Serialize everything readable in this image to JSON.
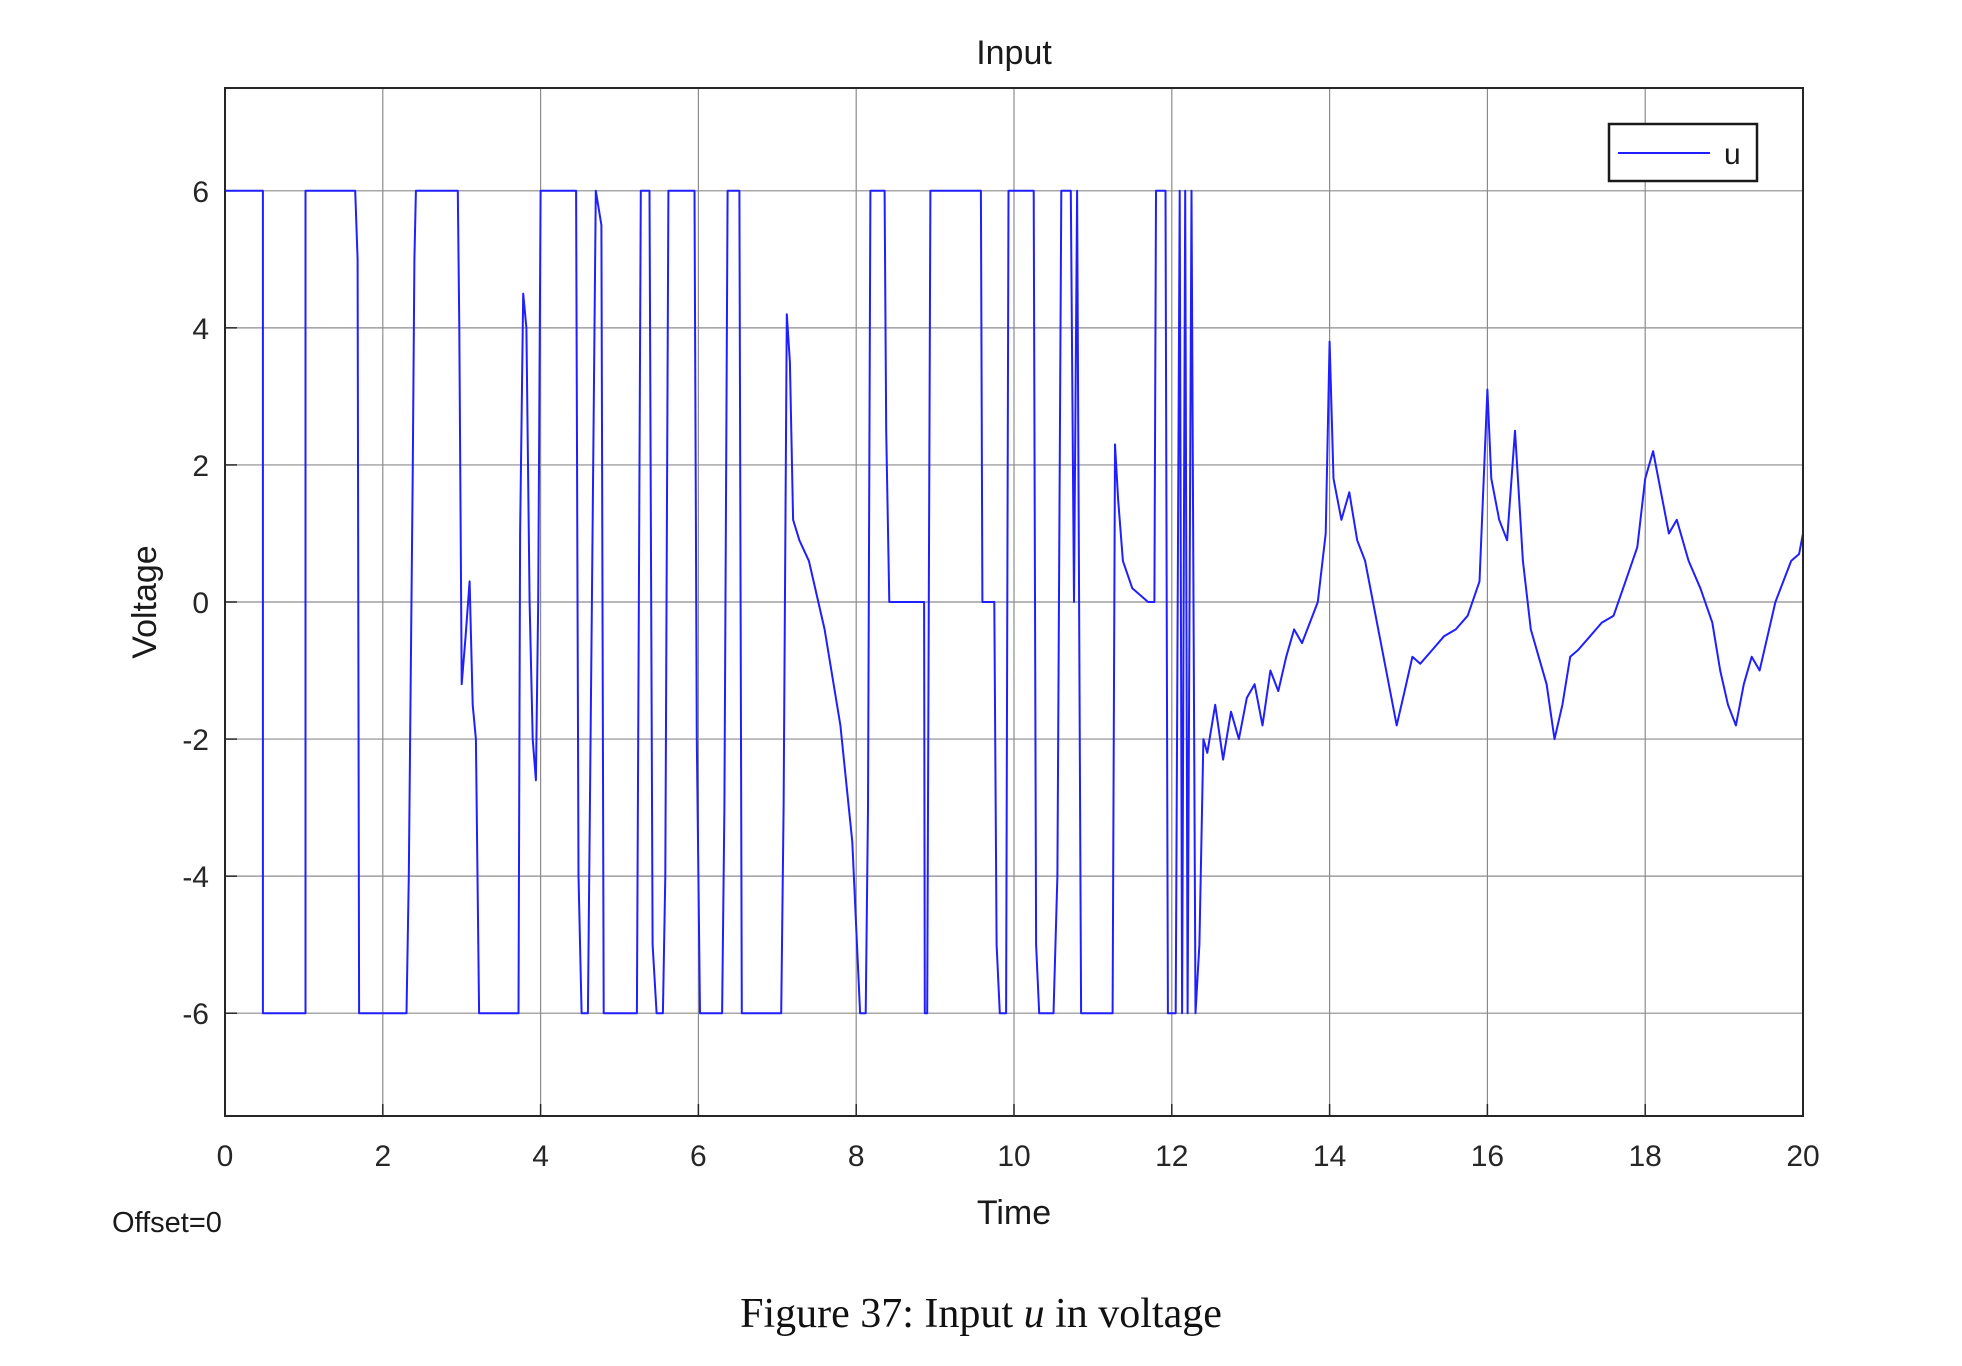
{
  "chart_data": {
    "type": "line",
    "title": "Input",
    "xlabel": "Time",
    "ylabel": "Voltage",
    "xlim": [
      0,
      20
    ],
    "ylim": [
      -7.5,
      7.5
    ],
    "x_ticks": [
      0,
      2,
      4,
      6,
      8,
      10,
      12,
      14,
      16,
      18,
      20
    ],
    "y_ticks": [
      -6,
      -4,
      -2,
      0,
      2,
      4,
      6
    ],
    "grid": true,
    "legend_position": "top-right",
    "annotation": "Offset=0",
    "series": [
      {
        "name": "u",
        "color": "#1f1fff",
        "points": [
          [
            0.0,
            6
          ],
          [
            0.48,
            6
          ],
          [
            0.48,
            -6
          ],
          [
            1.02,
            -6
          ],
          [
            1.02,
            6
          ],
          [
            1.65,
            6
          ],
          [
            1.68,
            5.0
          ],
          [
            1.7,
            -6
          ],
          [
            2.3,
            -6
          ],
          [
            2.33,
            -4
          ],
          [
            2.38,
            2
          ],
          [
            2.4,
            5
          ],
          [
            2.42,
            6
          ],
          [
            2.95,
            6
          ],
          [
            2.97,
            4
          ],
          [
            3.0,
            -1.2
          ],
          [
            3.05,
            -0.5
          ],
          [
            3.1,
            0.3
          ],
          [
            3.14,
            -1.5
          ],
          [
            3.18,
            -2
          ],
          [
            3.22,
            -6
          ],
          [
            3.72,
            -6
          ],
          [
            3.74,
            1
          ],
          [
            3.78,
            4.5
          ],
          [
            3.82,
            4.0
          ],
          [
            3.86,
            0
          ],
          [
            3.9,
            -2
          ],
          [
            3.94,
            -2.6
          ],
          [
            3.97,
            0
          ],
          [
            4.0,
            6
          ],
          [
            4.45,
            6
          ],
          [
            4.48,
            -4
          ],
          [
            4.52,
            -6
          ],
          [
            4.6,
            -6
          ],
          [
            4.65,
            0
          ],
          [
            4.7,
            6
          ],
          [
            4.77,
            5.5
          ],
          [
            4.8,
            -6
          ],
          [
            5.22,
            -6
          ],
          [
            5.27,
            6
          ],
          [
            5.38,
            6
          ],
          [
            5.42,
            -5
          ],
          [
            5.47,
            -6
          ],
          [
            5.55,
            -6
          ],
          [
            5.58,
            -4
          ],
          [
            5.62,
            6
          ],
          [
            5.95,
            6
          ],
          [
            5.98,
            -2
          ],
          [
            6.02,
            -6
          ],
          [
            6.3,
            -6
          ],
          [
            6.33,
            -3
          ],
          [
            6.37,
            6
          ],
          [
            6.52,
            6
          ],
          [
            6.55,
            -6
          ],
          [
            7.05,
            -6
          ],
          [
            7.08,
            -3
          ],
          [
            7.12,
            4.2
          ],
          [
            7.16,
            3.5
          ],
          [
            7.2,
            1.2
          ],
          [
            7.28,
            0.9
          ],
          [
            7.4,
            0.6
          ],
          [
            7.6,
            -0.4
          ],
          [
            7.8,
            -1.8
          ],
          [
            7.95,
            -3.5
          ],
          [
            8.05,
            -6
          ],
          [
            8.12,
            -6
          ],
          [
            8.15,
            -3
          ],
          [
            8.18,
            6
          ],
          [
            8.36,
            6
          ],
          [
            8.38,
            2.5
          ],
          [
            8.42,
            0
          ],
          [
            8.6,
            0
          ],
          [
            8.86,
            0
          ],
          [
            8.87,
            -6
          ],
          [
            8.9,
            -6
          ],
          [
            8.92,
            0
          ],
          [
            8.94,
            6
          ],
          [
            9.58,
            6
          ],
          [
            9.6,
            0
          ],
          [
            9.75,
            0
          ],
          [
            9.78,
            -5
          ],
          [
            9.82,
            -6
          ],
          [
            9.9,
            -6
          ],
          [
            9.93,
            6
          ],
          [
            10.25,
            6
          ],
          [
            10.28,
            -5
          ],
          [
            10.32,
            -6
          ],
          [
            10.5,
            -6
          ],
          [
            10.55,
            -4
          ],
          [
            10.6,
            6
          ],
          [
            10.72,
            6
          ],
          [
            10.76,
            0
          ],
          [
            10.8,
            6
          ],
          [
            10.85,
            -6
          ],
          [
            11.25,
            -6
          ],
          [
            11.28,
            2.3
          ],
          [
            11.32,
            1.5
          ],
          [
            11.38,
            0.6
          ],
          [
            11.5,
            0.2
          ],
          [
            11.7,
            0
          ],
          [
            11.78,
            0
          ],
          [
            11.8,
            6
          ],
          [
            11.92,
            6
          ],
          [
            11.95,
            -6
          ],
          [
            12.05,
            -6
          ],
          [
            12.1,
            6
          ],
          [
            12.13,
            -6
          ],
          [
            12.17,
            6
          ],
          [
            12.2,
            -6
          ],
          [
            12.25,
            6
          ],
          [
            12.3,
            -6
          ],
          [
            12.35,
            -5
          ],
          [
            12.4,
            -2
          ],
          [
            12.45,
            -2.2
          ],
          [
            12.55,
            -1.5
          ],
          [
            12.65,
            -2.3
          ],
          [
            12.75,
            -1.6
          ],
          [
            12.85,
            -2.0
          ],
          [
            12.95,
            -1.4
          ],
          [
            13.05,
            -1.2
          ],
          [
            13.15,
            -1.8
          ],
          [
            13.25,
            -1.0
          ],
          [
            13.35,
            -1.3
          ],
          [
            13.45,
            -0.8
          ],
          [
            13.55,
            -0.4
          ],
          [
            13.65,
            -0.6
          ],
          [
            13.75,
            -0.3
          ],
          [
            13.85,
            0.0
          ],
          [
            13.95,
            1.0
          ],
          [
            14.0,
            3.8
          ],
          [
            14.05,
            1.8
          ],
          [
            14.15,
            1.2
          ],
          [
            14.25,
            1.6
          ],
          [
            14.35,
            0.9
          ],
          [
            14.45,
            0.6
          ],
          [
            14.55,
            0.0
          ],
          [
            14.65,
            -0.6
          ],
          [
            14.75,
            -1.2
          ],
          [
            14.85,
            -1.8
          ],
          [
            14.95,
            -1.3
          ],
          [
            15.05,
            -0.8
          ],
          [
            15.15,
            -0.9
          ],
          [
            15.3,
            -0.7
          ],
          [
            15.45,
            -0.5
          ],
          [
            15.6,
            -0.4
          ],
          [
            15.75,
            -0.2
          ],
          [
            15.9,
            0.3
          ],
          [
            16.0,
            3.1
          ],
          [
            16.05,
            1.8
          ],
          [
            16.15,
            1.2
          ],
          [
            16.25,
            0.9
          ],
          [
            16.35,
            2.5
          ],
          [
            16.45,
            0.6
          ],
          [
            16.55,
            -0.4
          ],
          [
            16.65,
            -0.8
          ],
          [
            16.75,
            -1.2
          ],
          [
            16.85,
            -2.0
          ],
          [
            16.95,
            -1.5
          ],
          [
            17.05,
            -0.8
          ],
          [
            17.15,
            -0.7
          ],
          [
            17.3,
            -0.5
          ],
          [
            17.45,
            -0.3
          ],
          [
            17.6,
            -0.2
          ],
          [
            17.75,
            0.3
          ],
          [
            17.9,
            0.8
          ],
          [
            18.0,
            1.8
          ],
          [
            18.1,
            2.2
          ],
          [
            18.2,
            1.6
          ],
          [
            18.3,
            1.0
          ],
          [
            18.4,
            1.2
          ],
          [
            18.55,
            0.6
          ],
          [
            18.7,
            0.2
          ],
          [
            18.85,
            -0.3
          ],
          [
            18.95,
            -1.0
          ],
          [
            19.05,
            -1.5
          ],
          [
            19.15,
            -1.8
          ],
          [
            19.25,
            -1.2
          ],
          [
            19.35,
            -0.8
          ],
          [
            19.45,
            -1.0
          ],
          [
            19.55,
            -0.5
          ],
          [
            19.65,
            0.0
          ],
          [
            19.75,
            0.3
          ],
          [
            19.85,
            0.6
          ],
          [
            19.95,
            0.7
          ],
          [
            20.0,
            1.0
          ]
        ]
      }
    ]
  },
  "caption": {
    "prefix": "Figure 37:  Input ",
    "variable": "u",
    "suffix": " in voltage"
  }
}
